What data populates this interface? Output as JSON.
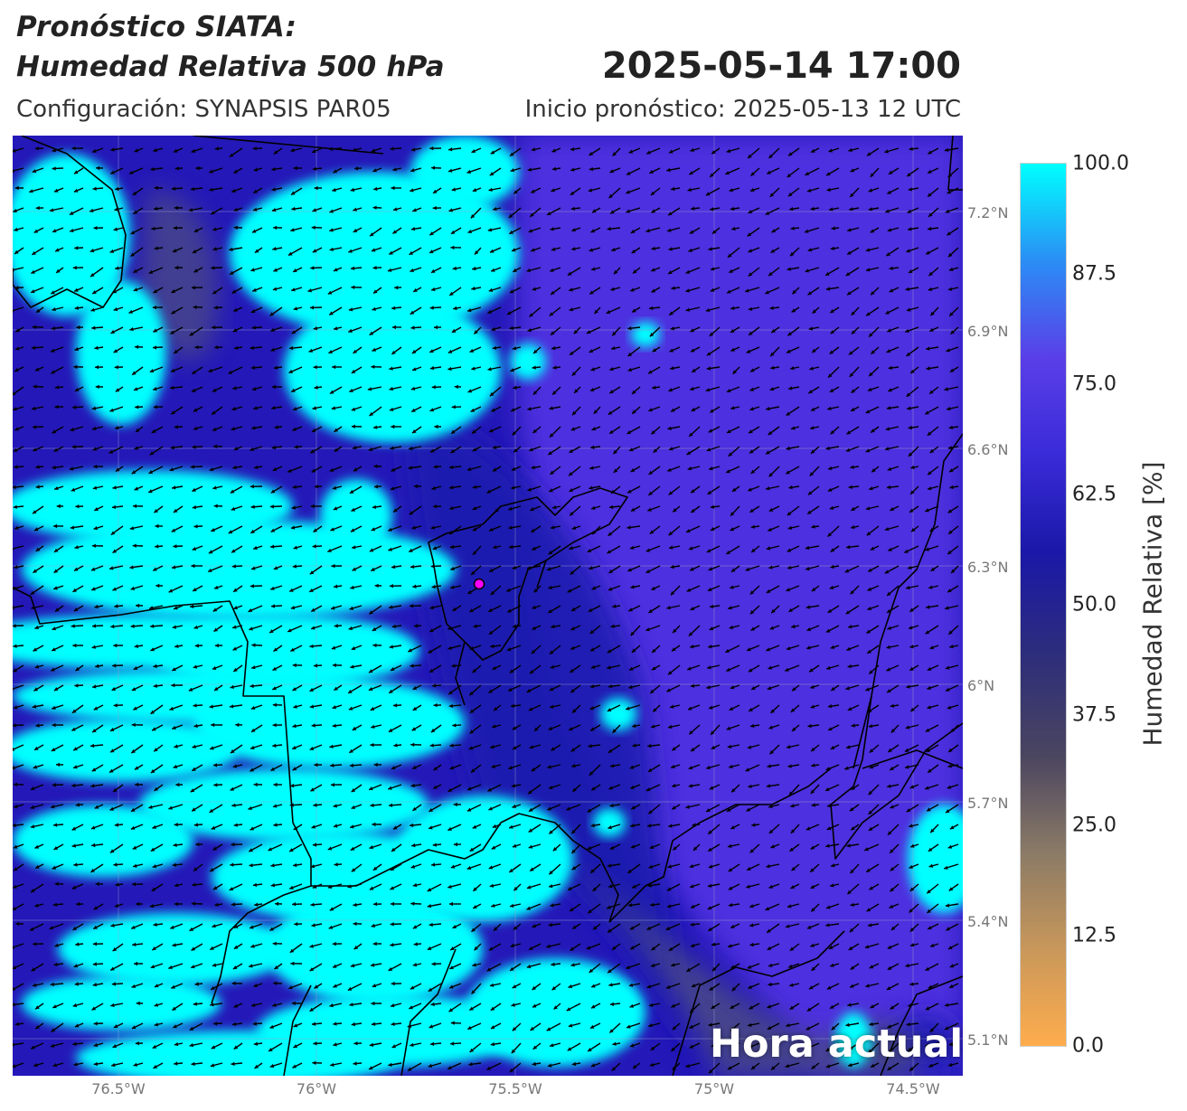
{
  "header": {
    "title_line1": "Pronóstico SIATA:",
    "title_line2": "Humedad Relativa 500 hPa",
    "datetime": "2025-05-14 17:00",
    "config": "Configuración: SYNAPSIS PAR05",
    "init": "Inicio pronóstico: 2025-05-13 12 UTC"
  },
  "map": {
    "overlay_label": "Hora actual",
    "lat_ticks": [
      "7.2°N",
      "6.9°N",
      "6.6°N",
      "6.3°N",
      "6°N",
      "5.7°N",
      "5.4°N",
      "5.1°N"
    ],
    "lon_ticks": [
      "76.5°W",
      "76°W",
      "75.5°W",
      "75°W",
      "74.5°W"
    ],
    "marker": {
      "color": "#ff00ff"
    },
    "colors": {
      "low_humidity": "#4a4a88",
      "mid_humidity": "#1f1fb0",
      "high_humidity": "#5535e6",
      "saturated": "#00ffff",
      "wind_arrows": "#000000",
      "borders": "#000000"
    }
  },
  "colorbar": {
    "label": "Humedad Relativa [%]",
    "ticks": [
      "100.0",
      "87.5",
      "75.0",
      "62.5",
      "50.0",
      "37.5",
      "25.0",
      "12.5",
      "0.0"
    ],
    "colors": [
      "#ffad4d",
      "#c8975a",
      "#8a7a66",
      "#4a4560",
      "#2e2e7a",
      "#1a18a8",
      "#3a2bd8",
      "#5a3fe8",
      "#2a8ef5",
      "#00ffff"
    ]
  }
}
